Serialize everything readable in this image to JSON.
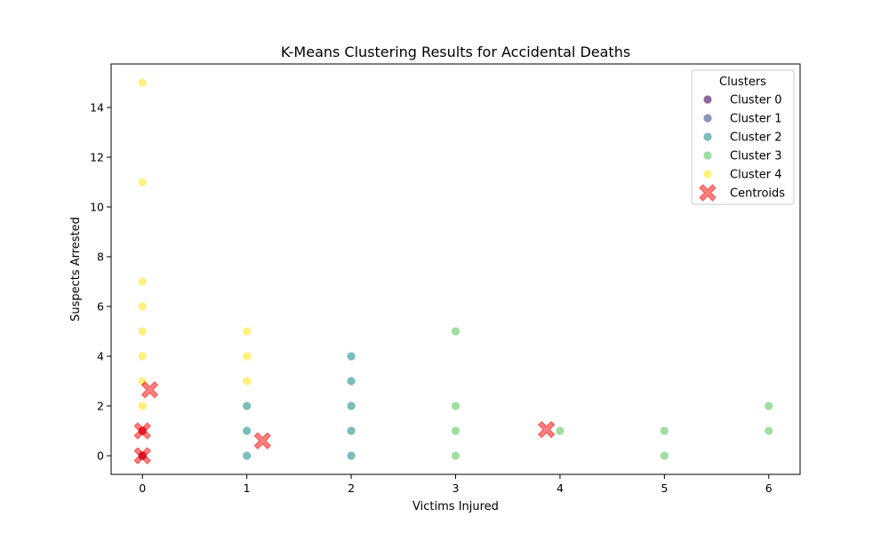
{
  "chart_data": {
    "type": "scatter",
    "title": "K-Means Clustering Results for Accidental Deaths",
    "xlabel": "Victims Injured",
    "ylabel": "Suspects Arrested",
    "xlim": [
      -0.3,
      6.3
    ],
    "ylim": [
      -0.75,
      15.75
    ],
    "xticks": [
      0,
      1,
      2,
      3,
      4,
      5,
      6
    ],
    "yticks": [
      0,
      2,
      4,
      6,
      8,
      10,
      12,
      14
    ],
    "grid": false,
    "legend": {
      "title": "Clusters",
      "placement": "top-right"
    },
    "series": [
      {
        "name": "Cluster 0",
        "color": "#440154",
        "alpha": 0.6,
        "points": [
          [
            0,
            0
          ],
          [
            0,
            1
          ]
        ]
      },
      {
        "name": "Cluster 1",
        "color": "#3b528b",
        "alpha": 0.6,
        "points": [
          [
            0,
            0
          ]
        ]
      },
      {
        "name": "Cluster 2",
        "color": "#21918c",
        "alpha": 0.6,
        "points": [
          [
            1,
            0
          ],
          [
            1,
            1
          ],
          [
            1,
            2
          ],
          [
            2,
            0
          ],
          [
            2,
            1
          ],
          [
            2,
            2
          ],
          [
            2,
            3
          ],
          [
            2,
            4
          ]
        ]
      },
      {
        "name": "Cluster 3",
        "color": "#5ec962",
        "alpha": 0.6,
        "points": [
          [
            3,
            0
          ],
          [
            3,
            1
          ],
          [
            3,
            2
          ],
          [
            3,
            5
          ],
          [
            4,
            1
          ],
          [
            5,
            0
          ],
          [
            5,
            1
          ],
          [
            6,
            1
          ],
          [
            6,
            2
          ]
        ]
      },
      {
        "name": "Cluster 4",
        "color": "#fde725",
        "alpha": 0.6,
        "points": [
          [
            0,
            2
          ],
          [
            0,
            3
          ],
          [
            0,
            4
          ],
          [
            0,
            5
          ],
          [
            0,
            6
          ],
          [
            0,
            7
          ],
          [
            0,
            11
          ],
          [
            0,
            15
          ],
          [
            1,
            3
          ],
          [
            1,
            4
          ],
          [
            1,
            5
          ]
        ]
      }
    ],
    "centroids": {
      "name": "Centroids",
      "color": "#ff0000",
      "alpha": 0.5,
      "points": [
        [
          0,
          0
        ],
        [
          0,
          1
        ],
        [
          0.07,
          2.65
        ],
        [
          1.15,
          0.6
        ],
        [
          3.87,
          1.05
        ]
      ]
    },
    "overlay_points": {
      "color": "#ff0000",
      "alpha": 0.5,
      "points": [
        [
          0,
          0
        ],
        [
          0,
          1
        ]
      ]
    }
  }
}
